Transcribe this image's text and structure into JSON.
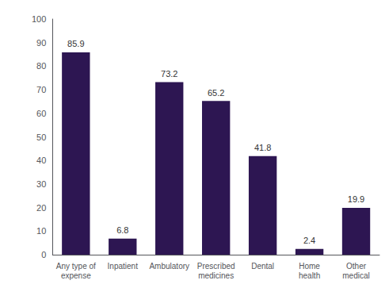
{
  "chart_data": {
    "type": "bar",
    "categories": [
      "Any type of\nexpense",
      "Inpatient",
      "Ambulatory",
      "Prescribed\nmedicines",
      "Dental",
      "Home\nhealth",
      "Other\nmedical"
    ],
    "values": [
      85.9,
      6.8,
      73.2,
      65.2,
      41.8,
      2.4,
      19.9
    ],
    "color": "#2d1652",
    "ylim": [
      0,
      100
    ],
    "yticks": [
      0,
      10,
      20,
      30,
      40,
      50,
      60,
      70,
      80,
      90,
      100
    ],
    "grid": false,
    "data_labels": true
  }
}
